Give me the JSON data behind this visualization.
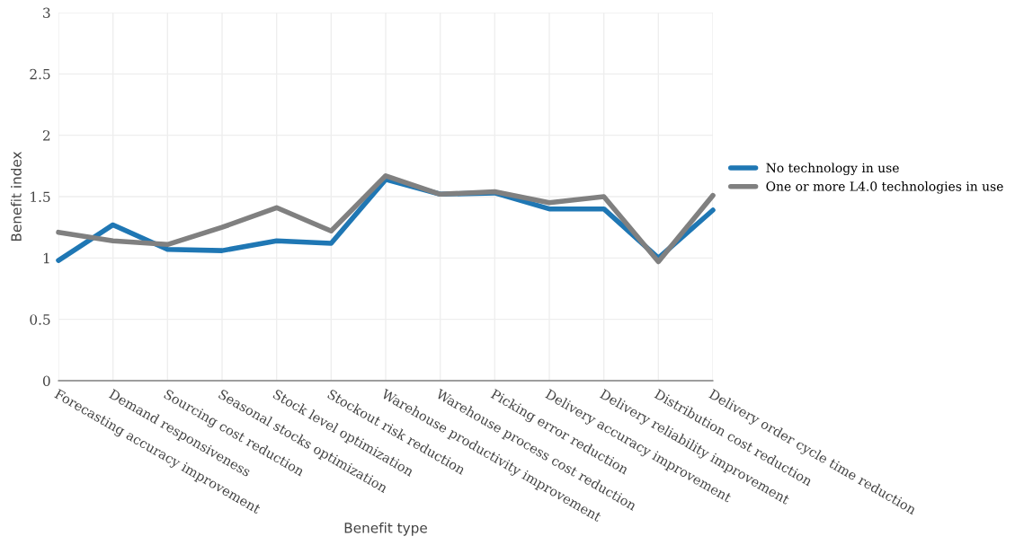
{
  "chart_data": {
    "type": "line",
    "xlabel": "Benefit type",
    "ylabel": "Benefit index",
    "categories": [
      "Forecasting accuracy improvement",
      "Demand responsiveness",
      "Sourcing cost reduction",
      "Seasonal stocks optimization",
      "Stock level optimization",
      "Stockout risk reduction",
      "Warehouse productivity improvement",
      "Warehouse process cost reduction",
      "Picking error reduction",
      "Delivery accuracy improvement",
      "Delivery reliability improvement",
      "Distribution cost reduction",
      "Delivery order cycle time reduction"
    ],
    "series": [
      {
        "name": "No technology in use",
        "color": "#1f77b4",
        "values": [
          0.98,
          1.27,
          1.07,
          1.06,
          1.14,
          1.12,
          1.64,
          1.52,
          1.53,
          1.4,
          1.4,
          1.0,
          1.39
        ]
      },
      {
        "name": "One or more L4.0 technologies in use",
        "color": "#808080",
        "values": [
          1.21,
          1.14,
          1.11,
          1.25,
          1.41,
          1.22,
          1.67,
          1.52,
          1.54,
          1.45,
          1.5,
          0.97,
          1.51
        ]
      }
    ],
    "ylim": [
      0,
      3
    ],
    "yticks": [
      0,
      0.5,
      1,
      1.5,
      2,
      2.5,
      3
    ],
    "grid": true,
    "legend": "right",
    "marker": "none",
    "line_style": "solid"
  }
}
